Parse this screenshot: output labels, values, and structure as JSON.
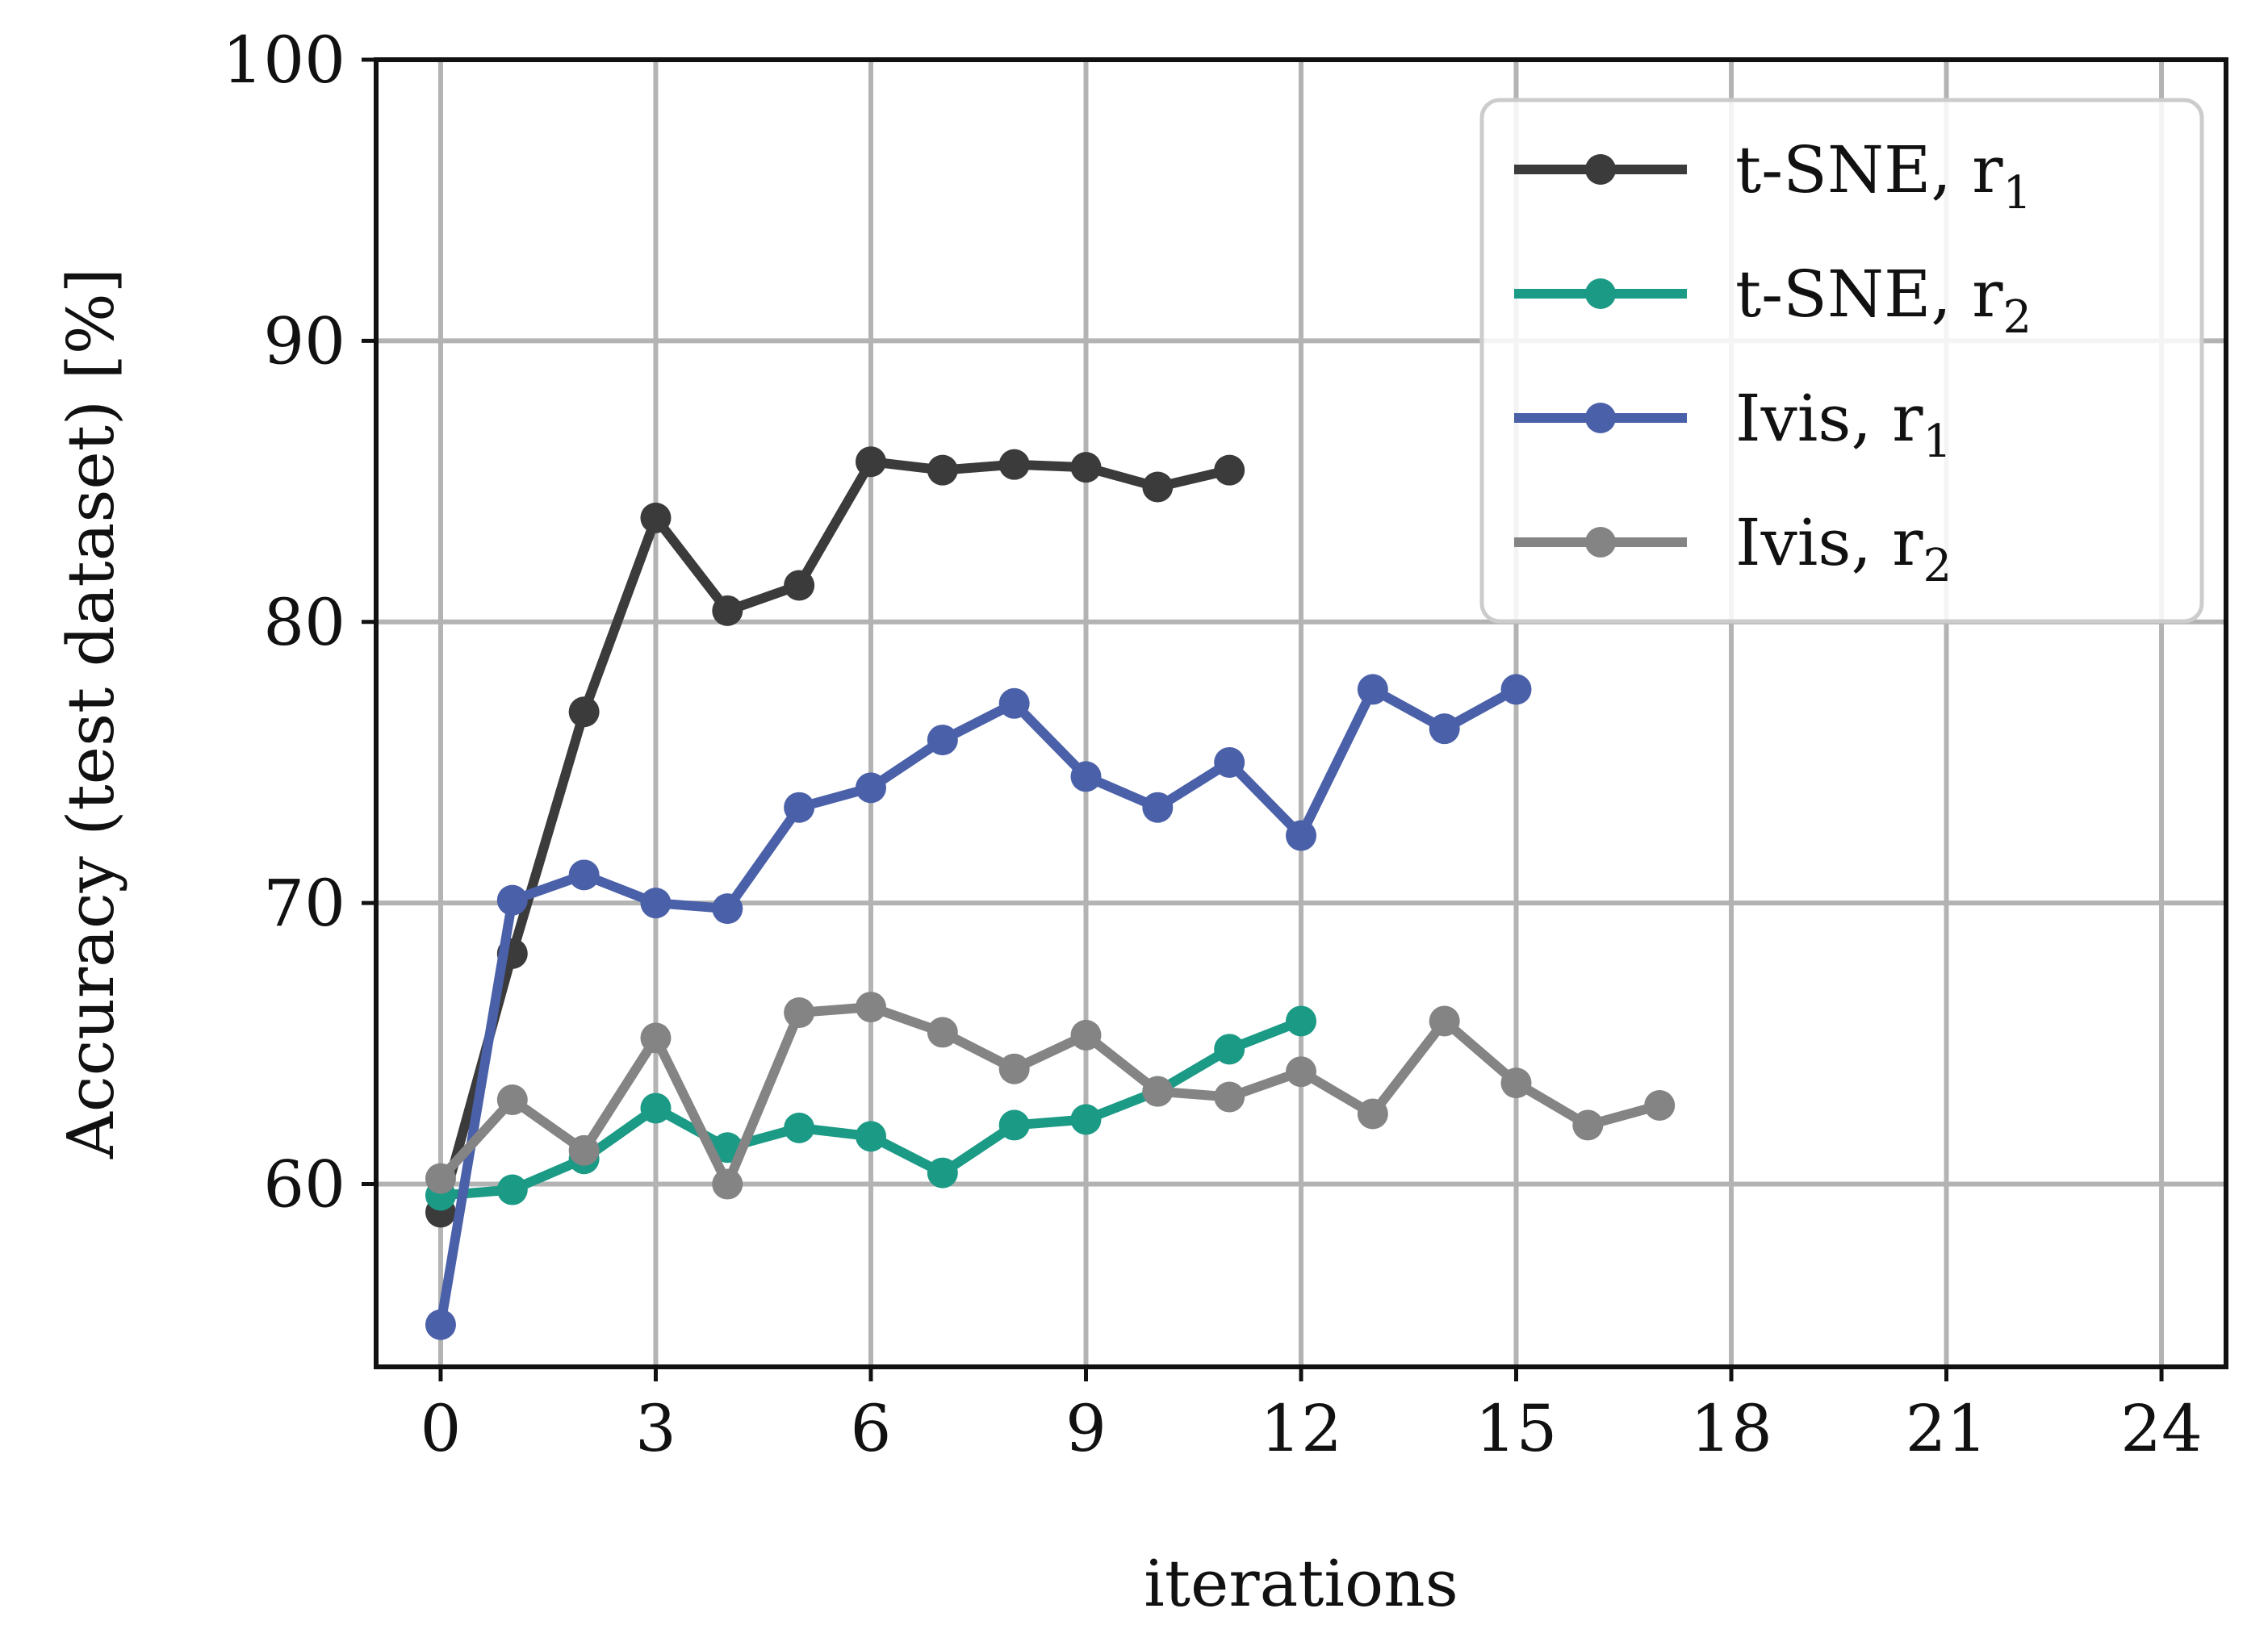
{
  "chart_data": {
    "type": "line",
    "title": "",
    "xlabel": "iterations",
    "ylabel": "Accuracy (test dataset) [%]",
    "xlim": [
      -0.9,
      24.9
    ],
    "ylim": [
      53.5,
      100
    ],
    "xticks": [
      0,
      3,
      6,
      9,
      12,
      15,
      18,
      21,
      24
    ],
    "yticks": [
      60,
      70,
      80,
      90,
      100
    ],
    "grid": true,
    "legend_position": "top-right",
    "series": [
      {
        "name": "t-SNE, r",
        "subscript": "1",
        "color": "#3b3b3b",
        "x": [
          0,
          1,
          2,
          3,
          4,
          5,
          6,
          7,
          8,
          9,
          10,
          11
        ],
        "y": [
          59.0,
          68.2,
          76.8,
          83.7,
          80.4,
          81.3,
          85.7,
          85.4,
          85.6,
          85.5,
          84.8,
          85.4
        ]
      },
      {
        "name": "t-SNE, r",
        "subscript": "2",
        "color": "#1b9a86",
        "x": [
          0,
          1,
          2,
          3,
          4,
          5,
          6,
          7,
          8,
          9,
          10,
          11,
          12
        ],
        "y": [
          59.6,
          59.8,
          60.9,
          62.7,
          61.3,
          62.0,
          61.7,
          60.4,
          62.1,
          62.3,
          63.3,
          64.8,
          65.8
        ]
      },
      {
        "name": "Ivis, r",
        "subscript": "1",
        "color": "#4a60a8",
        "x": [
          0,
          1,
          2,
          3,
          4,
          5,
          6,
          7,
          8,
          9,
          10,
          11,
          12,
          13,
          14,
          15
        ],
        "y": [
          55.0,
          70.1,
          71.0,
          70.0,
          69.8,
          73.4,
          74.1,
          75.8,
          77.1,
          74.5,
          73.4,
          75.0,
          72.4,
          77.6,
          76.2,
          77.6
        ]
      },
      {
        "name": "Ivis, r",
        "subscript": "2",
        "color": "#848484",
        "x": [
          0,
          1,
          2,
          3,
          4,
          5,
          6,
          7,
          8,
          9,
          10,
          11,
          12,
          13,
          14,
          15,
          16,
          17
        ],
        "y": [
          60.2,
          63.0,
          61.2,
          65.2,
          60.0,
          66.1,
          66.3,
          65.4,
          64.1,
          65.3,
          63.3,
          63.1,
          64.0,
          62.5,
          65.8,
          63.6,
          62.1,
          62.8
        ]
      }
    ]
  }
}
